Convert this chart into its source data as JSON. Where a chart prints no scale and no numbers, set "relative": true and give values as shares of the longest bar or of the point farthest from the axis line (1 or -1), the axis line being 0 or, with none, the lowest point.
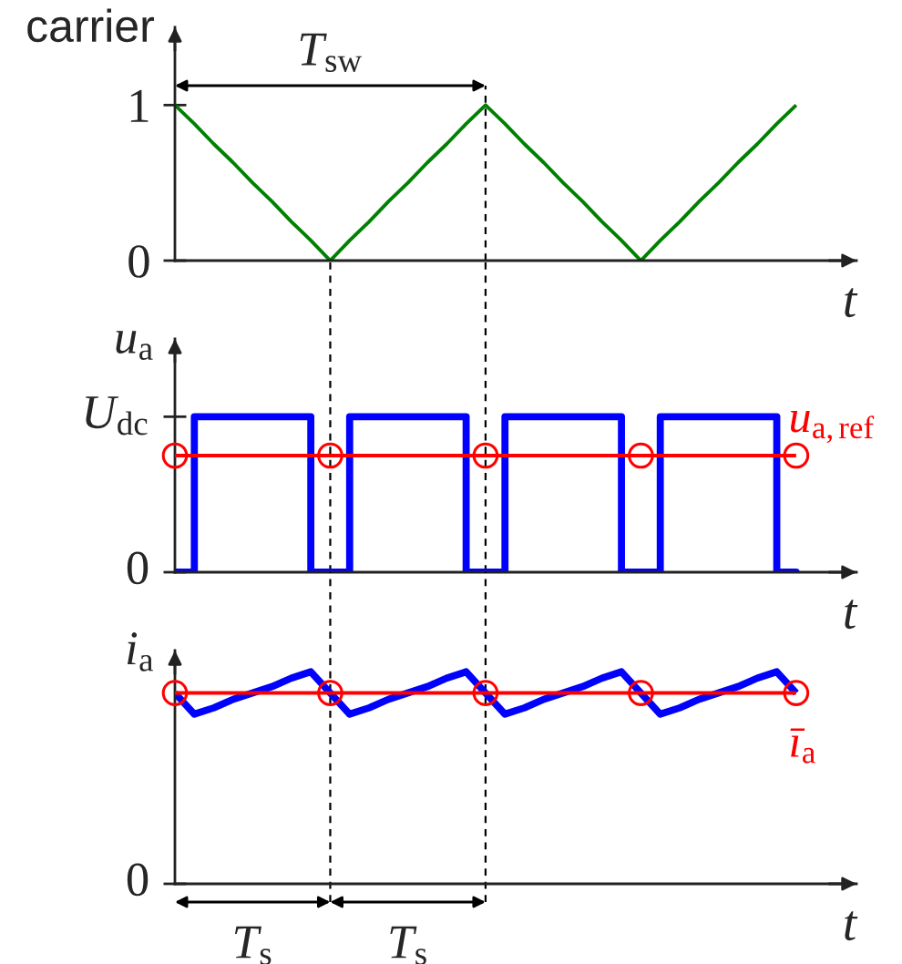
{
  "chart_data": [
    {
      "type": "line",
      "ylabel": "carrier",
      "xlabel": "t",
      "categories": [
        null,
        null,
        null,
        null,
        null,
        null,
        null,
        null,
        null,
        null,
        null,
        null,
        null,
        null,
        null,
        null,
        null,
        null,
        null,
        null,
        null,
        null,
        null,
        null,
        null,
        null,
        null,
        null,
        null,
        null,
        null,
        null,
        null
      ],
      "series": [
        {
          "color": "#008000",
          "values": [
            1,
            0.88,
            0.75,
            0.63,
            0.5,
            0.38,
            0.25,
            0.13,
            0,
            0.13,
            0.25,
            0.38,
            0.5,
            0.63,
            0.75,
            0.88,
            1,
            0.88,
            0.75,
            0.63,
            0.5,
            0.38,
            0.25,
            0.13,
            0,
            0.13,
            0.25,
            0.38,
            0.5,
            0.63,
            0.75,
            0.88,
            1
          ]
        }
      ],
      "ylim": [
        0,
        1.5
      ],
      "yticks": [
        0,
        1
      ],
      "annotations": [
        "T$_{sw}$"
      ]
    },
    {
      "type": "line",
      "ylabel": "u$_{a}$",
      "xlabel": "t",
      "relative": true,
      "categories": [
        null,
        null,
        null,
        null,
        null,
        null,
        null,
        null,
        null,
        null,
        null,
        null,
        null,
        null,
        null,
        null,
        null,
        null,
        null,
        null,
        null,
        null,
        null,
        null,
        null,
        null,
        null,
        null,
        null,
        null,
        null,
        null,
        null
      ],
      "series": [
        {
          "type": "step",
          "color": "#0000ff",
          "values": [
            0,
            1,
            1,
            1,
            1,
            1,
            1,
            0,
            0,
            1,
            1,
            1,
            1,
            1,
            1,
            0,
            0,
            1,
            1,
            1,
            1,
            1,
            1,
            0,
            0,
            1,
            1,
            1,
            1,
            1,
            1,
            0,
            0
          ]
        },
        {
          "name": "u$_{a,ref}$",
          "color": "#ff0000",
          "values": [
            0.75,
            0.75,
            0.75,
            0.75,
            0.75,
            0.75,
            0.75,
            0.75,
            0.75,
            0.75,
            0.75,
            0.75,
            0.75,
            0.75,
            0.75,
            0.75,
            0.75,
            0.75,
            0.75,
            0.75,
            0.75,
            0.75,
            0.75,
            0.75,
            0.75,
            0.75,
            0.75,
            0.75,
            0.75,
            0.75,
            0.75,
            0.75,
            0.75
          ]
        },
        {
          "type": "scatter",
          "marker": "circle",
          "color": "#ff0000",
          "values": [
            0.75,
            null,
            null,
            null,
            null,
            null,
            null,
            null,
            0.75,
            null,
            null,
            null,
            null,
            null,
            null,
            null,
            0.75,
            null,
            null,
            null,
            null,
            null,
            null,
            null,
            0.75,
            null,
            null,
            null,
            null,
            null,
            null,
            null,
            0.75
          ]
        }
      ],
      "annotations": [
        "0",
        "U$_{dc}$"
      ]
    },
    {
      "type": "line",
      "ylabel": "i$_{a}$",
      "xlabel": "t",
      "relative": true,
      "categories": [
        null,
        null,
        null,
        null,
        null,
        null,
        null,
        null,
        null,
        null,
        null,
        null,
        null,
        null,
        null,
        null,
        null,
        null,
        null,
        null,
        null,
        null,
        null,
        null,
        null,
        null,
        null,
        null,
        null,
        null,
        null,
        null,
        null
      ],
      "series": [
        {
          "color": "#0000ff",
          "values": [
            0.9,
            0.8,
            0.83,
            0.87,
            0.9,
            0.93,
            0.97,
            1,
            0.9,
            0.8,
            0.83,
            0.87,
            0.9,
            0.93,
            0.97,
            1,
            0.9,
            0.8,
            0.83,
            0.87,
            0.9,
            0.93,
            0.97,
            1,
            0.9,
            0.8,
            0.83,
            0.87,
            0.9,
            0.93,
            0.97,
            1,
            0.9
          ]
        },
        {
          "name": "ī$_{a}$",
          "color": "#ff0000",
          "values": [
            0.9,
            0.9,
            0.9,
            0.9,
            0.9,
            0.9,
            0.9,
            0.9,
            0.9,
            0.9,
            0.9,
            0.9,
            0.9,
            0.9,
            0.9,
            0.9,
            0.9,
            0.9,
            0.9,
            0.9,
            0.9,
            0.9,
            0.9,
            0.9,
            0.9,
            0.9,
            0.9,
            0.9,
            0.9,
            0.9,
            0.9,
            0.9,
            0.9
          ]
        },
        {
          "type": "scatter",
          "marker": "circle",
          "color": "#ff0000",
          "values": [
            0.9,
            null,
            null,
            null,
            null,
            null,
            null,
            null,
            0.9,
            null,
            null,
            null,
            null,
            null,
            null,
            null,
            0.9,
            null,
            null,
            null,
            null,
            null,
            null,
            null,
            0.9,
            null,
            null,
            null,
            null,
            null,
            null,
            null,
            0.9
          ]
        }
      ],
      "annotations": [
        "T$_{s}$",
        "T$_{s}$",
        "0"
      ]
    }
  ]
}
